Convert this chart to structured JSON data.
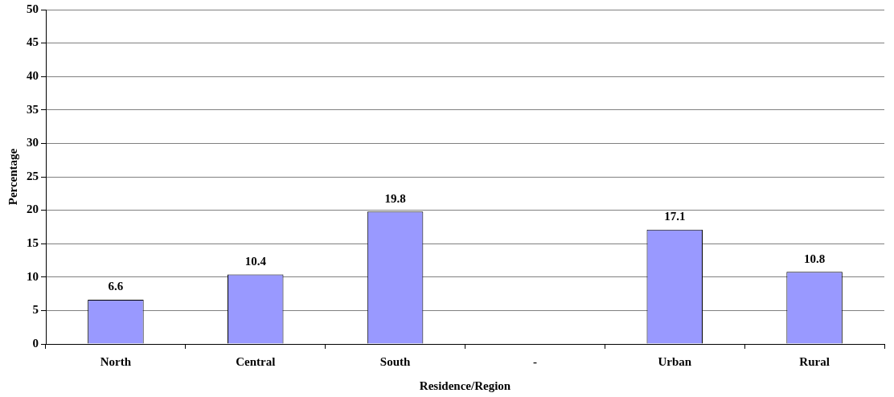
{
  "chart_data": {
    "type": "bar",
    "xlabel": "Residence/Region",
    "ylabel": "Percentage",
    "categories": [
      "North",
      "Central",
      "South",
      "-",
      "Urban",
      "Rural"
    ],
    "values": [
      6.6,
      10.4,
      19.8,
      null,
      17.1,
      10.8
    ],
    "color": "#9999ff",
    "ylim": [
      0,
      50
    ],
    "yticks": [
      0,
      5,
      10,
      15,
      20,
      25,
      30,
      35,
      40,
      45,
      50
    ],
    "grid": "y",
    "legend": false,
    "data_labels": true
  }
}
